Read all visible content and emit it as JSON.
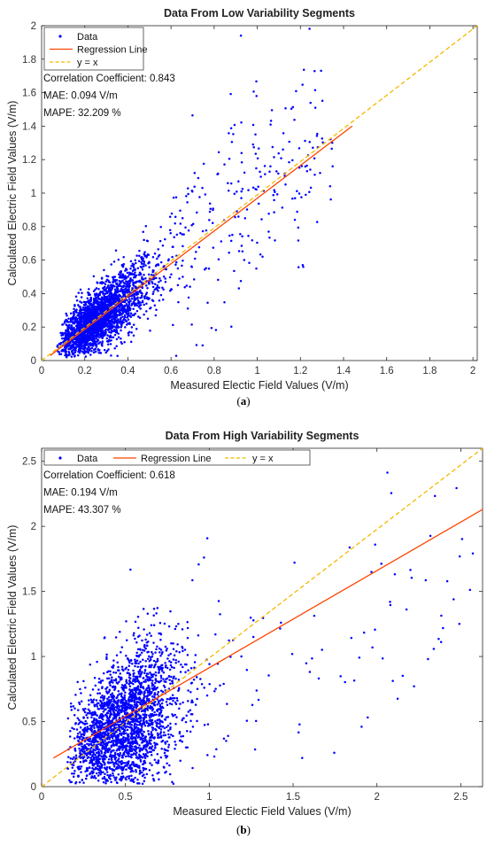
{
  "chart_data": [
    {
      "type": "scatter",
      "title": "Data From Low Variability Segments",
      "xlabel": "Measured Electic Field Values (V/m)",
      "ylabel": "Calculated Electric Field Values (V/m)",
      "xlim": [
        0,
        2.02
      ],
      "ylim": [
        0,
        2.0
      ],
      "xticks": [
        "0",
        "0.2",
        "0.4",
        "0.6",
        "0.8",
        "1",
        "1.2",
        "1.4",
        "1.6",
        "1.8",
        "2"
      ],
      "yticks": [
        "0",
        "0.2",
        "0.4",
        "0.6",
        "0.8",
        "1",
        "1.2",
        "1.4",
        "1.6",
        "1.8",
        "2"
      ],
      "grid": false,
      "legend_position": "top-left",
      "legend_layout": "vertical",
      "series": [
        {
          "name": "Data",
          "kind": "points",
          "color": "#0000ff"
        },
        {
          "name": "Regression Line",
          "kind": "line",
          "color": "#ff4500",
          "x": [
            0.04,
            1.44
          ],
          "y": [
            0.03,
            1.4
          ]
        },
        {
          "name": "y = x",
          "kind": "dashed-line",
          "color": "#f5b800",
          "x": [
            0,
            2.02
          ],
          "y": [
            0,
            2.02
          ]
        }
      ],
      "cloud": {
        "seed": 11,
        "dense_n": 2600,
        "sparse_n": 230,
        "x_mode": 0.2,
        "x_spread": 0.15,
        "slope": 0.97,
        "noise": 0.12
      },
      "annotations": [
        "Correlation Coefficient: 0.843",
        "MAE: 0.094 V/m",
        "MAPE: 32.209 %"
      ],
      "caption": "a"
    },
    {
      "type": "scatter",
      "title": "Data From High Variability Segments",
      "xlabel": "Measured Electic Field Values (V/m)",
      "ylabel": "Calculated Electric Field Values (V/m)",
      "xlim": [
        0,
        2.63
      ],
      "ylim": [
        0,
        2.6
      ],
      "xticks": [
        "0",
        "0.5",
        "1",
        "1.5",
        "2",
        "2.5"
      ],
      "yticks": [
        "0",
        "0.5",
        "1",
        "1.5",
        "2",
        "2.5"
      ],
      "grid": false,
      "legend_position": "top-left",
      "legend_layout": "horizontal",
      "series": [
        {
          "name": "Data",
          "kind": "points",
          "color": "#0000ff"
        },
        {
          "name": "Regression Line",
          "kind": "line",
          "color": "#ff4500",
          "x": [
            0.07,
            2.63
          ],
          "y": [
            0.22,
            2.13
          ]
        },
        {
          "name": "y = x",
          "kind": "dashed-line",
          "color": "#f5b800",
          "x": [
            0,
            2.63
          ],
          "y": [
            0,
            2.63
          ]
        }
      ],
      "cloud": {
        "seed": 29,
        "dense_n": 2500,
        "sparse_n": 90,
        "x_mode": 0.42,
        "x_spread": 0.2,
        "slope": 0.72,
        "noise": 0.28
      },
      "annotations": [
        "Correlation Coefficient: 0.618",
        "MAE: 0.194 V/m",
        "MAPE: 43.307 %"
      ],
      "caption": "b"
    }
  ]
}
